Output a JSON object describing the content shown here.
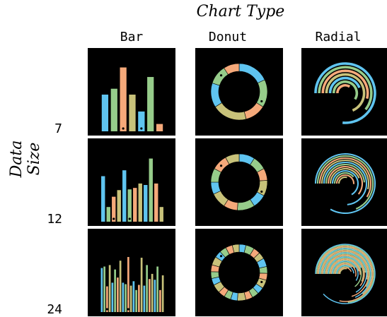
{
  "title": "Chart Type",
  "y_axis_label": "Data Size",
  "columns": [
    "Bar",
    "Donut",
    "Radial"
  ],
  "rows": [
    "7",
    "12",
    "24"
  ],
  "colors": {
    "background": "#000000",
    "palette": [
      "#5fc4f0",
      "#96cc8a",
      "#f5a97a",
      "#c8c27a"
    ],
    "marker": "#000000"
  },
  "chart_data": [
    {
      "type": "bar",
      "size": 7,
      "values": [
        0.5,
        0.58,
        0.87,
        0.5,
        0.27,
        0.74,
        0.1
      ]
    },
    {
      "type": "donut",
      "size": 7,
      "values": [
        0.18,
        0.16,
        0.12,
        0.2,
        0.14,
        0.11,
        0.09
      ]
    },
    {
      "type": "radial",
      "size": 7,
      "values": [
        0.78,
        0.62,
        0.55,
        0.7,
        0.45,
        0.6,
        0.35
      ]
    },
    {
      "type": "bar",
      "size": 12,
      "values": [
        0.62,
        0.2,
        0.34,
        0.43,
        0.7,
        0.44,
        0.46,
        0.52,
        0.5,
        0.86,
        0.52,
        0.2
      ]
    },
    {
      "type": "donut",
      "size": 12,
      "values": [
        0.09,
        0.08,
        0.07,
        0.09,
        0.08,
        0.1,
        0.08,
        0.09,
        0.07,
        0.08,
        0.09,
        0.08
      ]
    },
    {
      "type": "radial",
      "size": 12,
      "values": [
        0.85,
        0.7,
        0.6,
        0.55,
        0.75,
        0.5,
        0.62,
        0.45,
        0.68,
        0.4,
        0.52,
        0.3
      ]
    },
    {
      "type": "bar",
      "size": 24,
      "values": [
        0.6,
        0.62,
        0.35,
        0.64,
        0.4,
        0.58,
        0.47,
        0.7,
        0.4,
        0.38,
        0.75,
        0.36,
        0.42,
        0.3,
        0.37,
        0.74,
        0.36,
        0.64,
        0.45,
        0.52,
        0.44,
        0.62,
        0.3,
        0.5
      ]
    },
    {
      "type": "donut",
      "size": 24,
      "values": [
        0.04,
        0.05,
        0.04,
        0.04,
        0.05,
        0.04,
        0.04,
        0.05,
        0.04,
        0.04,
        0.04,
        0.05,
        0.04,
        0.04,
        0.04,
        0.05,
        0.04,
        0.04,
        0.04,
        0.05,
        0.04,
        0.04,
        0.04,
        0.04
      ]
    },
    {
      "type": "radial",
      "size": 24,
      "values": [
        0.9,
        0.75,
        0.8,
        0.65,
        0.7,
        0.6,
        0.72,
        0.55,
        0.68,
        0.5,
        0.62,
        0.58,
        0.45,
        0.66,
        0.52,
        0.48,
        0.6,
        0.42,
        0.55,
        0.38,
        0.5,
        0.35,
        0.45,
        0.3
      ]
    }
  ]
}
